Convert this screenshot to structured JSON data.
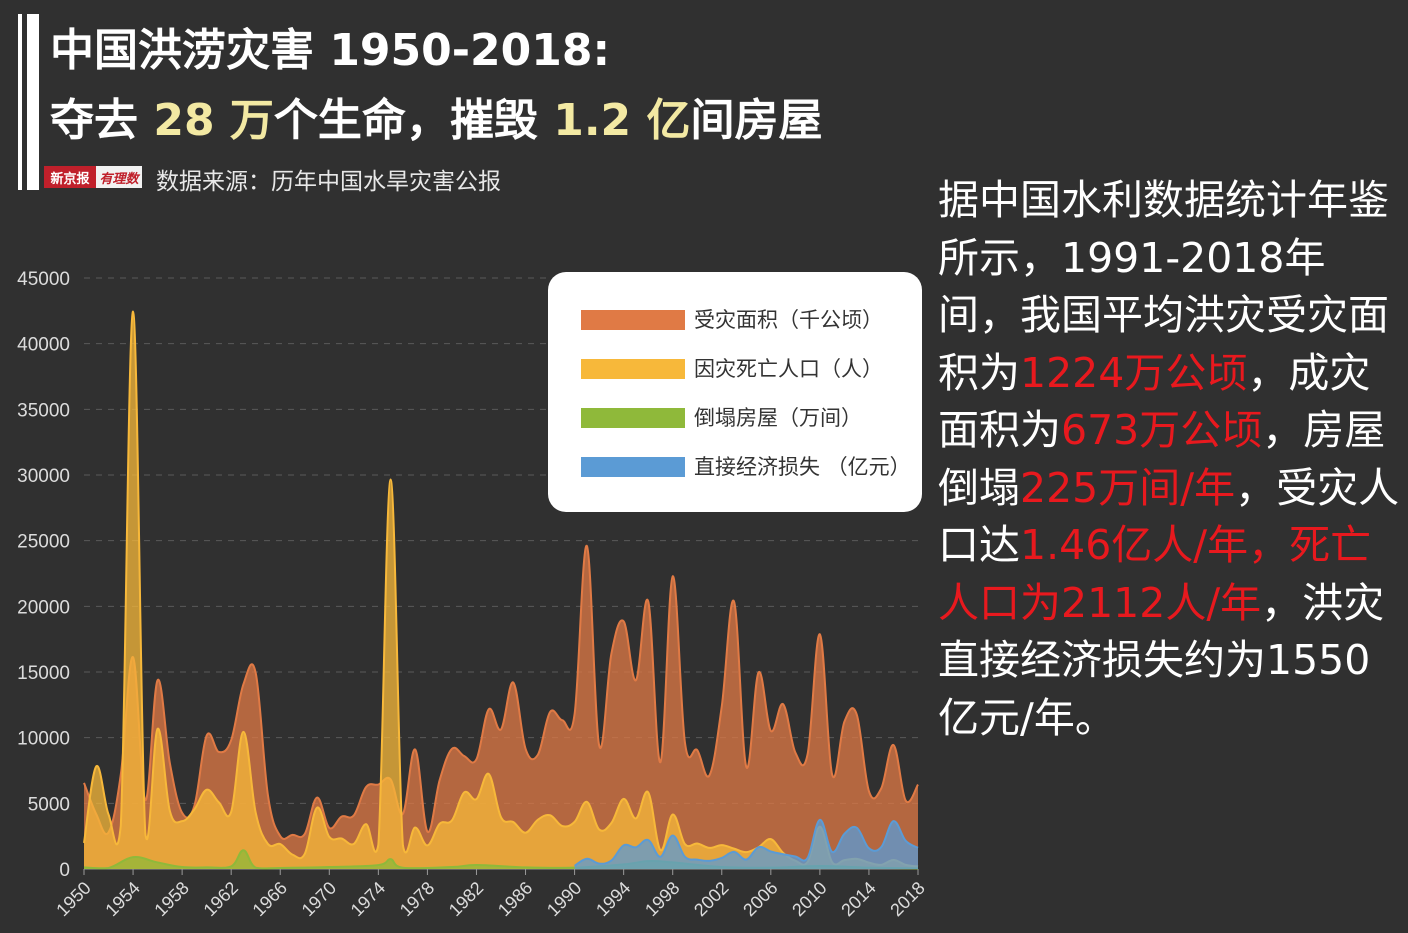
{
  "header": {
    "title_line1": "中国洪涝灾害 1950-2018:",
    "title_line2_a": "夺去 ",
    "title_line2_b": "28 万",
    "title_line2_c": "个生命，摧毁 ",
    "title_line2_d": "1.2 亿",
    "title_line2_e": "间房屋",
    "logo_left": "新京报",
    "logo_right": "有理数",
    "source": "数据来源：历年中国水旱灾害公报"
  },
  "side_text": {
    "p1": "据中国水利数据统计年鉴所示，1991-2018年间，我国平均洪灾受灾面积为",
    "r1": "1224万公顷",
    "p2": "，成灾面积为",
    "r2": "673万公顷",
    "p3": "，房屋倒塌",
    "r3": "225万间/年",
    "p4": "，受灾人口达",
    "r4": "1.46亿人/年，死亡人口为2112人/年",
    "p5": "，洪灾直接经济损失约为1550亿元/年。"
  },
  "colors": {
    "area": "#e07a45",
    "deaths": "#f7b83a",
    "houses": "#8fb93a",
    "loss": "#5b9bd5",
    "red_text": "#e8191e",
    "highlight": "#f3e9a3"
  },
  "chart_data": {
    "type": "area",
    "x_start": 1950,
    "x_end": 2018,
    "ylim": [
      0,
      45000
    ],
    "yticks": [
      0,
      5000,
      10000,
      15000,
      20000,
      25000,
      30000,
      35000,
      40000,
      45000
    ],
    "xticks": [
      1950,
      1954,
      1958,
      1962,
      1966,
      1970,
      1974,
      1978,
      1982,
      1986,
      1990,
      1994,
      1998,
      2002,
      2006,
      2010,
      2014,
      2018
    ],
    "grid": "horizontal dashed",
    "legend_position": "top-right",
    "series": [
      {
        "name": "受灾面积（千公顷）",
        "color": "#e07a45",
        "x": [
          1950,
          1951,
          1952,
          1953,
          1954,
          1955,
          1956,
          1957,
          1958,
          1959,
          1960,
          1961,
          1962,
          1963,
          1964,
          1965,
          1966,
          1967,
          1968,
          1969,
          1970,
          1971,
          1972,
          1973,
          1974,
          1975,
          1976,
          1977,
          1978,
          1979,
          1980,
          1981,
          1982,
          1983,
          1984,
          1985,
          1986,
          1987,
          1988,
          1989,
          1990,
          1991,
          1992,
          1993,
          1994,
          1995,
          1996,
          1997,
          1998,
          1999,
          2000,
          2001,
          2002,
          2003,
          2004,
          2005,
          2006,
          2007,
          2008,
          2009,
          2010,
          2011,
          2012,
          2013,
          2014,
          2015,
          2016,
          2017,
          2018
        ],
        "values": [
          6560,
          4170,
          2790,
          7190,
          16130,
          5250,
          14380,
          8060,
          4280,
          4810,
          10160,
          8910,
          9810,
          14070,
          14930,
          5590,
          2510,
          2600,
          2670,
          5440,
          3130,
          3990,
          4080,
          6240,
          6430,
          6820,
          4200,
          9100,
          2850,
          6770,
          9150,
          8600,
          8360,
          12160,
          10630,
          14200,
          9160,
          8690,
          11950,
          11330,
          11800,
          24600,
          9420,
          16390,
          18860,
          14370,
          20390,
          8130,
          22290,
          9610,
          9050,
          7140,
          12380,
          20370,
          7780,
          14970,
          10520,
          12550,
          8870,
          8750,
          17870,
          7190,
          11220,
          11780,
          5920,
          6130,
          9440,
          5200,
          6430
        ]
      },
      {
        "name": "因灾死亡人口（人）",
        "color": "#f7b83a",
        "x": [
          1950,
          1951,
          1952,
          1953,
          1954,
          1955,
          1956,
          1957,
          1958,
          1959,
          1960,
          1961,
          1962,
          1963,
          1964,
          1965,
          1966,
          1967,
          1968,
          1969,
          1970,
          1971,
          1972,
          1973,
          1974,
          1975,
          1976,
          1977,
          1978,
          1979,
          1980,
          1981,
          1982,
          1983,
          1984,
          1985,
          1986,
          1987,
          1988,
          1989,
          1990,
          1991,
          1992,
          1993,
          1994,
          1995,
          1996,
          1997,
          1998,
          1999,
          2000,
          2001,
          2002,
          2003,
          2004,
          2005,
          2006,
          2007,
          2008,
          2009,
          2010,
          2011,
          2012,
          2013,
          2014,
          2015,
          2016,
          2017,
          2018
        ],
        "values": [
          1982,
          7819,
          4162,
          3308,
          42447,
          2718,
          10676,
          4415,
          3642,
          4540,
          6033,
          5074,
          4350,
          10441,
          4288,
          1906,
          1901,
          1095,
          1159,
          4667,
          2444,
          2323,
          1910,
          3413,
          1849,
          29653,
          1817,
          3163,
          1796,
          3446,
          3705,
          5832,
          5323,
          7238,
          3941,
          3578,
          2761,
          3749,
          4094,
          3270,
          3589,
          5113,
          3012,
          3499,
          5340,
          3852,
          5840,
          1441,
          4150,
          1896,
          1942,
          1605,
          1819,
          1551,
          1282,
          1660,
          2276,
          1230,
          633,
          538,
          3222,
          519,
          673,
          775,
          486,
          319,
          686,
          316,
          187
        ]
      },
      {
        "name": "倒塌房屋（万间）",
        "color": "#8fb93a",
        "x": [
          1950,
          1952,
          1954,
          1956,
          1958,
          1960,
          1962,
          1963,
          1964,
          1966,
          1970,
          1974,
          1975,
          1976,
          1980,
          1982,
          1986,
          1990,
          1994,
          1996,
          1998,
          2002,
          2006,
          2010,
          2014,
          2018
        ],
        "values": [
          120,
          80,
          900,
          500,
          150,
          120,
          200,
          1430,
          100,
          80,
          150,
          300,
          750,
          100,
          150,
          300,
          120,
          100,
          350,
          600,
          500,
          150,
          100,
          230,
          100,
          50
        ]
      },
      {
        "name": "直接经济损失 （亿元）",
        "color": "#5b9bd5",
        "x": [
          1990,
          1991,
          1992,
          1993,
          1994,
          1995,
          1996,
          1997,
          1998,
          1999,
          2000,
          2001,
          2002,
          2003,
          2004,
          2005,
          2006,
          2007,
          2008,
          2009,
          2010,
          2011,
          2012,
          2013,
          2014,
          2015,
          2016,
          2017,
          2018
        ],
        "values": [
          239,
          779,
          413,
          642,
          1797,
          1653,
          2208,
          930,
          2551,
          930,
          712,
          623,
          838,
          1301,
          714,
          1662,
          1333,
          1123,
          955,
          846,
          3745,
          1301,
          2675,
          3146,
          1573,
          1661,
          3643,
          2143,
          1615
        ]
      }
    ]
  }
}
